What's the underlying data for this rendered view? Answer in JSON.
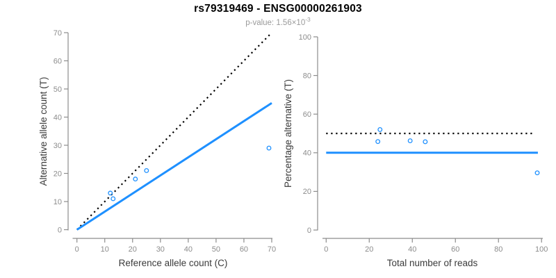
{
  "header": {
    "title": "rs79319469 - ENSG00000261903",
    "pvalue_prefix": "p-value: 1.56×10",
    "pvalue_exponent": "-3"
  },
  "colors": {
    "accent_blue": "#1E90FF",
    "dotted_black": "#000000",
    "axis_gray": "#8c8c8c",
    "tick_label_gray": "#8c8c8c",
    "axis_title_color": "#3a3a3a",
    "subtitle_gray": "#9a9a9a",
    "title_color": "#000000",
    "background": "#ffffff"
  },
  "chart_data": [
    {
      "id": "allele-count-scatter",
      "type": "scatter",
      "title": "",
      "xlabel": "Reference allele count (C)",
      "ylabel": "Alternative allele count (T)",
      "xlim": [
        0,
        70
      ],
      "ylim": [
        0,
        70
      ],
      "x_ticks": [
        0,
        10,
        20,
        30,
        40,
        50,
        60,
        70
      ],
      "y_ticks": [
        0,
        10,
        20,
        30,
        40,
        50,
        60,
        70
      ],
      "grid": false,
      "legend": "none",
      "point_color": "#1E90FF",
      "points": [
        {
          "x": 12,
          "y": 13
        },
        {
          "x": 13,
          "y": 11
        },
        {
          "x": 21,
          "y": 18
        },
        {
          "x": 25,
          "y": 21
        },
        {
          "x": 69,
          "y": 29
        }
      ],
      "lines": [
        {
          "name": "identity-line",
          "style": "dotted",
          "color": "#000000",
          "from": [
            0,
            0
          ],
          "to": [
            69.7,
            69.7
          ]
        },
        {
          "name": "fitted-ratio-line",
          "style": "solid",
          "color": "#1E90FF",
          "from": [
            0,
            0
          ],
          "to": [
            70,
            45
          ]
        }
      ]
    },
    {
      "id": "percentage-vs-reads-scatter",
      "type": "scatter",
      "title": "",
      "xlabel": "Total number of reads",
      "ylabel": "Percentage alternative (T)",
      "xlim": [
        0,
        100
      ],
      "ylim": [
        0,
        100
      ],
      "x_ticks": [
        0,
        20,
        40,
        60,
        80,
        100
      ],
      "y_ticks": [
        0,
        20,
        40,
        60,
        80,
        100
      ],
      "grid": false,
      "legend": "none",
      "point_color": "#1E90FF",
      "points": [
        {
          "x": 24,
          "y": 45.8
        },
        {
          "x": 25,
          "y": 52
        },
        {
          "x": 39,
          "y": 46.2
        },
        {
          "x": 46,
          "y": 45.7
        },
        {
          "x": 98,
          "y": 29.6
        }
      ],
      "lines": [
        {
          "name": "expected-50pct-line",
          "style": "dotted",
          "color": "#000000",
          "from": [
            0,
            50
          ],
          "to": [
            96.5,
            50
          ]
        },
        {
          "name": "estimated-40pct-line",
          "style": "solid",
          "color": "#1E90FF",
          "from": [
            0,
            40
          ],
          "to": [
            98.3,
            40
          ]
        }
      ]
    }
  ]
}
